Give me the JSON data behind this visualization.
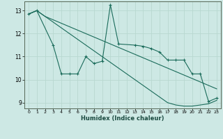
{
  "xlabel": "Humidex (Indice chaleur)",
  "bg_color": "#cde8e4",
  "grid_color": "#b8d8d0",
  "line_color": "#1a6b5a",
  "ylim": [
    8.75,
    13.4
  ],
  "xlim": [
    -0.5,
    23.5
  ],
  "yticks": [
    9,
    10,
    11,
    12,
    13
  ],
  "xticks": [
    0,
    1,
    2,
    3,
    4,
    5,
    6,
    7,
    8,
    9,
    10,
    11,
    12,
    13,
    14,
    15,
    16,
    17,
    18,
    19,
    20,
    21,
    22,
    23
  ],
  "line1_x": [
    0,
    1,
    2,
    3,
    4,
    5,
    6,
    7,
    8,
    9,
    10,
    11,
    12,
    13,
    14,
    15,
    16,
    17,
    18,
    19,
    20,
    21,
    22,
    23
  ],
  "line1_y": [
    12.85,
    13.0,
    12.75,
    12.6,
    12.45,
    12.3,
    12.15,
    12.0,
    11.85,
    11.7,
    11.55,
    11.4,
    11.25,
    11.1,
    10.95,
    10.8,
    10.65,
    10.5,
    10.35,
    10.2,
    10.05,
    9.9,
    9.75,
    9.6
  ],
  "line2_x": [
    0,
    1,
    2,
    3,
    4,
    5,
    6,
    7,
    8,
    9,
    10,
    11,
    12,
    13,
    14,
    15,
    16,
    17,
    18,
    19,
    20,
    21,
    22,
    23
  ],
  "line2_y": [
    12.85,
    13.0,
    12.75,
    12.5,
    12.25,
    12.0,
    11.75,
    11.5,
    11.25,
    11.0,
    10.75,
    10.5,
    10.25,
    10.0,
    9.75,
    9.5,
    9.25,
    9.0,
    8.9,
    8.85,
    8.85,
    8.9,
    8.95,
    9.1
  ],
  "line3_x": [
    0,
    1,
    3,
    4,
    5,
    6,
    7,
    8,
    9,
    10,
    11,
    13,
    14,
    15,
    16,
    17,
    18,
    19,
    20,
    21,
    22,
    23
  ],
  "line3_y": [
    12.85,
    13.0,
    11.5,
    10.25,
    10.25,
    10.25,
    11.0,
    10.7,
    10.8,
    13.25,
    11.55,
    11.5,
    11.45,
    11.35,
    11.2,
    10.85,
    10.85,
    10.85,
    10.25,
    10.25,
    9.05,
    9.2
  ]
}
